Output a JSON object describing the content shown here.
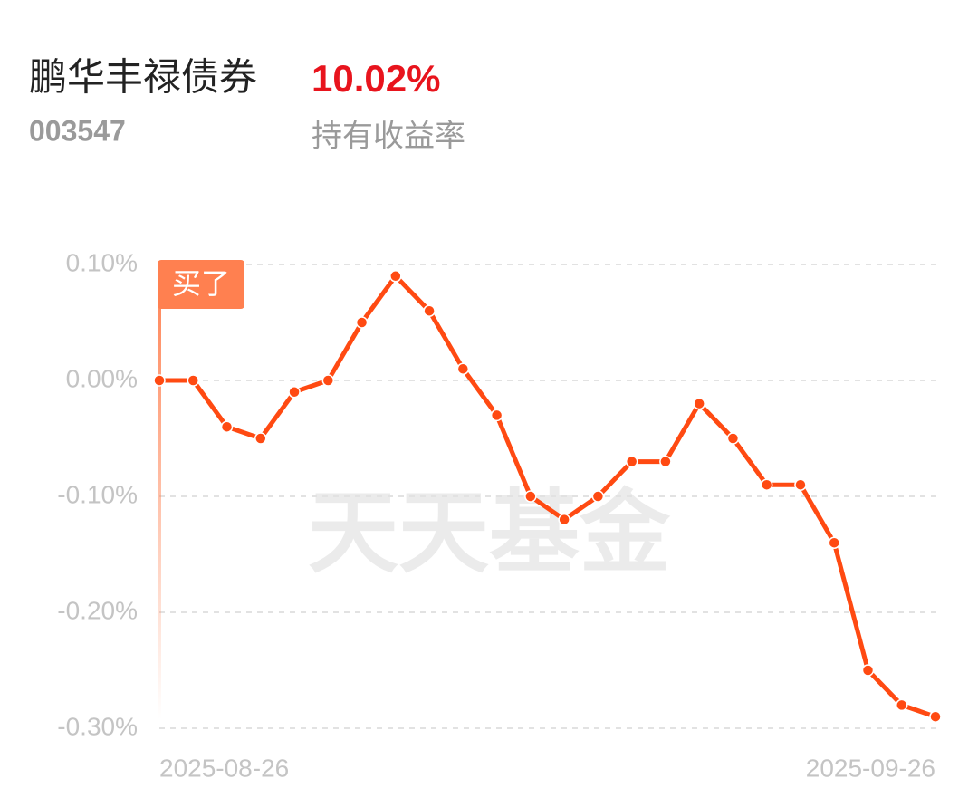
{
  "header": {
    "name": "鹏华丰禄债券",
    "return": "10.02%",
    "code": "003547",
    "return_label": "持有收益率"
  },
  "watermark": "天天基金",
  "chart_data": {
    "type": "line",
    "categories": [
      "2025-08-26",
      null,
      null,
      null,
      null,
      null,
      null,
      null,
      null,
      null,
      null,
      null,
      null,
      null,
      null,
      null,
      null,
      null,
      null,
      null,
      null,
      null,
      null,
      "2025-09-26"
    ],
    "values": [
      0,
      0,
      -0.04,
      -0.05,
      -0.01,
      0,
      0.05,
      0.09,
      0.06,
      0.01,
      -0.03,
      -0.1,
      -0.12,
      -0.1,
      -0.07,
      -0.07,
      -0.02,
      -0.05,
      -0.09,
      -0.09,
      -0.14,
      -0.25,
      -0.28,
      -0.29
    ],
    "color": "#ff4a12",
    "ylim": [
      -0.3,
      0.1
    ],
    "yticks": [
      {
        "value": 0.1,
        "label": "0.10%"
      },
      {
        "value": 0,
        "label": "0.00%"
      },
      {
        "value": -0.1,
        "label": "-0.10%"
      },
      {
        "value": -0.2,
        "label": "-0.20%"
      },
      {
        "value": -0.3,
        "label": "-0.30%"
      }
    ],
    "grid": true,
    "annotation": "买了"
  }
}
